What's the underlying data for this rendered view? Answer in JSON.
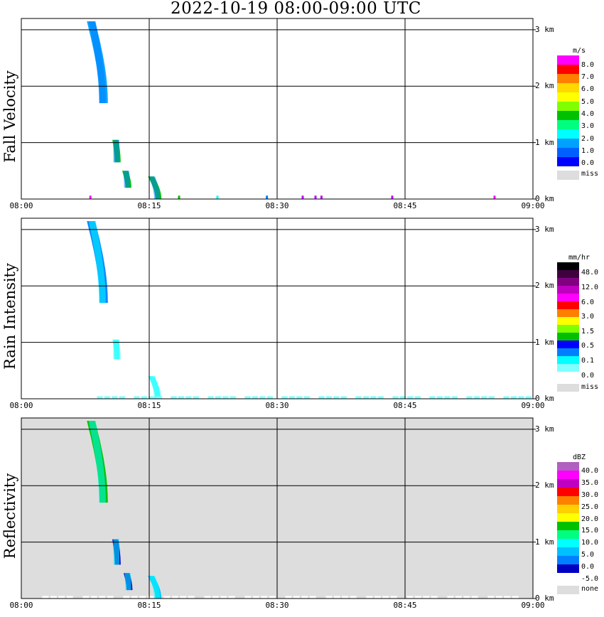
{
  "title": "2022-10-19   08:00-09:00 UTC",
  "chart_data": [
    {
      "type": "heatmap",
      "title": "Fall Velocity",
      "ylabel": "Fall Velocity",
      "x_ticks": [
        "08:00",
        "08:15",
        "08:30",
        "08:45",
        "09:00"
      ],
      "x_range_minutes": [
        0,
        60
      ],
      "y_ticks": [
        "0 km",
        "1 km",
        "2 km",
        "3 km"
      ],
      "y_range_km": [
        0,
        3.2
      ],
      "grid": true,
      "background": "#ffffff",
      "legend": {
        "unit": "m/s",
        "swatches": [
          "#ff00ff",
          "#ff0000",
          "#ff8000",
          "#ffd800",
          "#ffff00",
          "#80ff00",
          "#00c000",
          "#00ff80",
          "#00ffff",
          "#00a0ff",
          "#0060ff",
          "#0000ff",
          "#dddddd"
        ],
        "labels": [
          "8.0",
          "7.0",
          "6.0",
          "5.0",
          "4.0",
          "3.0",
          "2.0",
          "1.0",
          "0.0",
          "miss"
        ]
      },
      "features": [
        {
          "kind": "column",
          "t_start": 7.5,
          "t_end": 10.2,
          "h_bottom": 1.7,
          "h_top": 3.15,
          "color": "#00a0ff"
        },
        {
          "kind": "column",
          "t_start": 10.9,
          "t_end": 11.4,
          "h_bottom": 0.65,
          "h_top": 1.05,
          "color": "#00c000"
        },
        {
          "kind": "column",
          "t_start": 12.0,
          "t_end": 12.7,
          "h_bottom": 0.2,
          "h_top": 0.5,
          "color": "#00c000"
        },
        {
          "kind": "column",
          "t_start": 14.8,
          "t_end": 16.4,
          "h_bottom": 0.0,
          "h_top": 0.4,
          "color": "#00c000"
        },
        {
          "kind": "near-ground",
          "times": [
            8.1,
            18.5,
            23.0,
            28.8,
            33.0,
            34.5,
            35.2,
            43.5,
            55.5
          ],
          "colors": [
            "#ff00ff",
            "#00c000",
            "#00ffff",
            "#0080ff",
            "#c000ff",
            "#c000ff",
            "#c000ff",
            "#c000ff",
            "#ff00ff"
          ]
        }
      ]
    },
    {
      "type": "heatmap",
      "title": "Rain Intensity",
      "ylabel": "Rain Intensity",
      "x_ticks": [
        "08:00",
        "08:15",
        "08:30",
        "08:45",
        "09:00"
      ],
      "x_range_minutes": [
        0,
        60
      ],
      "y_ticks": [
        "0 km",
        "1 km",
        "2 km",
        "3 km"
      ],
      "y_range_km": [
        0,
        3.2
      ],
      "grid": true,
      "background": "#ffffff",
      "legend": {
        "unit": "mm/hr",
        "swatches": [
          "#000000",
          "#400040",
          "#800080",
          "#c000c0",
          "#ff00ff",
          "#ff0000",
          "#ff8000",
          "#ffff00",
          "#80ff00",
          "#00c000",
          "#0000ff",
          "#0080ff",
          "#00ffff",
          "#80ffff",
          "#ffffff",
          "#dddddd"
        ],
        "labels": [
          "48.0",
          "12.0",
          "6.0",
          "3.0",
          "1.5",
          "0.5",
          "0.1",
          "0.0",
          "miss"
        ]
      },
      "features": [
        {
          "kind": "column",
          "t_start": 7.5,
          "t_end": 10.2,
          "h_bottom": 1.7,
          "h_top": 3.15,
          "color": "#0080ff"
        },
        {
          "kind": "column",
          "t_start": 10.9,
          "t_end": 11.4,
          "h_bottom": 0.7,
          "h_top": 1.05,
          "color": "#80ffff"
        },
        {
          "kind": "column",
          "t_start": 14.8,
          "t_end": 16.4,
          "h_bottom": 0.0,
          "h_top": 0.4,
          "color": "#80ffff"
        },
        {
          "kind": "near-ground",
          "span": [
            8.0,
            60.0
          ],
          "color": "#80ffff"
        }
      ]
    },
    {
      "type": "heatmap",
      "title": "Reflectivity",
      "ylabel": "Reflectivity",
      "x_ticks": [
        "08:00",
        "08:15",
        "08:30",
        "08:45",
        "09:00"
      ],
      "x_range_minutes": [
        0,
        60
      ],
      "y_ticks": [
        "0 km",
        "1 km",
        "2 km",
        "3 km"
      ],
      "y_range_km": [
        0,
        3.2
      ],
      "grid": true,
      "background": "#dddddd",
      "legend": {
        "unit": "dBZ",
        "swatches": [
          "#b060c0",
          "#ff00ff",
          "#c000c0",
          "#ff0000",
          "#ff8000",
          "#ffd000",
          "#ffff00",
          "#00c000",
          "#00ff80",
          "#00ffff",
          "#00c0ff",
          "#0080ff",
          "#0000c0",
          "#ffffff",
          "#dddddd"
        ],
        "labels": [
          "40.0",
          "35.0",
          "30.0",
          "25.0",
          "20.0",
          "15.0",
          "10.0",
          "5.0",
          "0.0",
          "-5.0",
          "none"
        ]
      },
      "features": [
        {
          "kind": "column",
          "t_start": 7.5,
          "t_end": 10.2,
          "h_bottom": 1.7,
          "h_top": 3.15,
          "color": "#00c000"
        },
        {
          "kind": "column",
          "t_start": 10.9,
          "t_end": 11.4,
          "h_bottom": 0.6,
          "h_top": 1.05,
          "color": "#0000c0"
        },
        {
          "kind": "column",
          "t_start": 12.2,
          "t_end": 12.8,
          "h_bottom": 0.15,
          "h_top": 0.45,
          "color": "#0000c0"
        },
        {
          "kind": "column",
          "t_start": 14.8,
          "t_end": 16.4,
          "h_bottom": 0.0,
          "h_top": 0.4,
          "color": "#00c0ff"
        },
        {
          "kind": "near-ground",
          "span": [
            1.5,
            58.5
          ],
          "color": "#ffffff"
        }
      ]
    }
  ]
}
